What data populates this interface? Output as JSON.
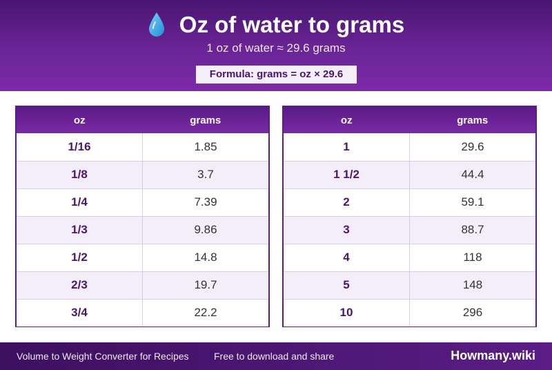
{
  "header": {
    "icon": "water-drop-icon",
    "title": "Oz of water to grams",
    "subtitle": "1 oz of water ≈ 29.6 grams",
    "formula": "Formula: grams = oz × 29.6"
  },
  "colors": {
    "header_purple": "#6a2596",
    "dark_purple": "#4a1570",
    "drop_blue": "#29a3e6",
    "row_alt": "#f4eefa"
  },
  "tables": [
    {
      "col_oz": "oz",
      "col_grams": "grams",
      "rows": [
        {
          "oz": "1/16",
          "grams": "1.85"
        },
        {
          "oz": "1/8",
          "grams": "3.7"
        },
        {
          "oz": "1/4",
          "grams": "7.39"
        },
        {
          "oz": "1/3",
          "grams": "9.86"
        },
        {
          "oz": "1/2",
          "grams": "14.8"
        },
        {
          "oz": "2/3",
          "grams": "19.7"
        },
        {
          "oz": "3/4",
          "grams": "22.2"
        }
      ]
    },
    {
      "col_oz": "oz",
      "col_grams": "grams",
      "rows": [
        {
          "oz": "1",
          "grams": "29.6"
        },
        {
          "oz": "1 1/2",
          "grams": "44.4"
        },
        {
          "oz": "2",
          "grams": "59.1"
        },
        {
          "oz": "3",
          "grams": "88.7"
        },
        {
          "oz": "4",
          "grams": "118"
        },
        {
          "oz": "5",
          "grams": "148"
        },
        {
          "oz": "10",
          "grams": "296"
        }
      ]
    }
  ],
  "footer": {
    "left_text": "Volume to Weight Converter for Recipes",
    "middle_text": "Free to download and share",
    "brand": "Howmany.wiki"
  }
}
